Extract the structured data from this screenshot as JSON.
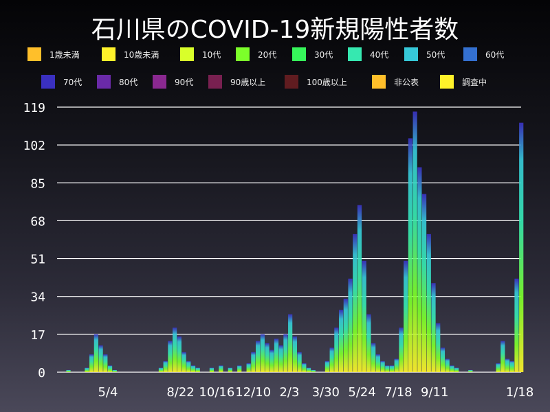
{
  "chart_data": {
    "type": "bar",
    "stacked": true,
    "title": "石川県のCOVID-19新規陽性者数",
    "xlabel": "",
    "ylabel": "",
    "ylim": [
      0,
      119
    ],
    "yticks": [
      0,
      17,
      34,
      51,
      68,
      85,
      102,
      119
    ],
    "xlim": [
      "2020-02-17",
      "2022-01-20"
    ],
    "xticks": [
      {
        "date": "2020-05-04",
        "label": "5/4"
      },
      {
        "date": "2020-08-22",
        "label": "8/22"
      },
      {
        "date": "2020-10-16",
        "label": "10/16"
      },
      {
        "date": "2020-12-10",
        "label": "12/10"
      },
      {
        "date": "2021-02-03",
        "label": "2/3"
      },
      {
        "date": "2021-03-30",
        "label": "3/30"
      },
      {
        "date": "2021-05-24",
        "label": "5/24"
      },
      {
        "date": "2021-07-18",
        "label": "7/18"
      },
      {
        "date": "2021-09-11",
        "label": "9/11"
      },
      {
        "date": "2022-01-18",
        "label": "1/18"
      }
    ],
    "grid": true,
    "legend_position": "top",
    "legend": [
      {
        "name": "1歳未満",
        "color": "#ffbf2a"
      },
      {
        "name": "10歳未満",
        "color": "#fff22a"
      },
      {
        "name": "10代",
        "color": "#d9ff2a"
      },
      {
        "name": "20代",
        "color": "#7cff2a"
      },
      {
        "name": "30代",
        "color": "#36f55a"
      },
      {
        "name": "40代",
        "color": "#36e8b0"
      },
      {
        "name": "50代",
        "color": "#36c8d8"
      },
      {
        "name": "60代",
        "color": "#3470d0"
      },
      {
        "name": "70代",
        "color": "#3a30c0"
      },
      {
        "name": "80代",
        "color": "#6a2aa8"
      },
      {
        "name": "90代",
        "color": "#8a2890"
      },
      {
        "name": "90歳以上",
        "color": "#782050"
      },
      {
        "name": "100歳以上",
        "color": "#601c20"
      },
      {
        "name": "非公表",
        "color": "#ffbf2a"
      },
      {
        "name": "調査中",
        "color": "#fff22a"
      }
    ],
    "x": [
      "2020-03-02",
      "2020-03-30",
      "2020-04-06",
      "2020-04-13",
      "2020-04-20",
      "2020-04-27",
      "2020-05-04",
      "2020-05-11",
      "2020-07-20",
      "2020-07-27",
      "2020-08-03",
      "2020-08-10",
      "2020-08-17",
      "2020-08-24",
      "2020-08-31",
      "2020-09-07",
      "2020-09-14",
      "2020-10-05",
      "2020-10-19",
      "2020-11-02",
      "2020-11-16",
      "2020-11-30",
      "2020-12-07",
      "2020-12-14",
      "2020-12-21",
      "2020-12-28",
      "2021-01-04",
      "2021-01-11",
      "2021-01-18",
      "2021-01-25",
      "2021-02-01",
      "2021-02-08",
      "2021-02-15",
      "2021-02-22",
      "2021-03-01",
      "2021-03-08",
      "2021-03-29",
      "2021-04-05",
      "2021-04-12",
      "2021-04-19",
      "2021-04-26",
      "2021-05-03",
      "2021-05-10",
      "2021-05-17",
      "2021-05-24",
      "2021-05-31",
      "2021-06-07",
      "2021-06-14",
      "2021-06-21",
      "2021-06-28",
      "2021-07-05",
      "2021-07-12",
      "2021-07-19",
      "2021-07-26",
      "2021-08-02",
      "2021-08-09",
      "2021-08-16",
      "2021-08-23",
      "2021-08-30",
      "2021-09-06",
      "2021-09-13",
      "2021-09-20",
      "2021-09-27",
      "2021-10-04",
      "2021-10-11",
      "2021-11-01",
      "2021-12-13",
      "2021-12-20",
      "2021-12-27",
      "2022-01-03",
      "2022-01-10",
      "2022-01-17"
    ],
    "values": [
      1,
      2,
      8,
      17,
      12,
      8,
      3,
      1,
      2,
      5,
      14,
      20,
      16,
      9,
      5,
      3,
      2,
      2,
      3,
      2,
      3,
      4,
      9,
      14,
      17,
      13,
      10,
      15,
      12,
      17,
      26,
      16,
      9,
      4,
      2,
      1,
      5,
      11,
      20,
      28,
      33,
      42,
      62,
      75,
      50,
      26,
      13,
      8,
      5,
      3,
      3,
      6,
      20,
      50,
      105,
      117,
      92,
      80,
      62,
      40,
      22,
      11,
      6,
      3,
      2,
      1,
      4,
      14,
      6,
      5,
      42,
      112
    ]
  }
}
